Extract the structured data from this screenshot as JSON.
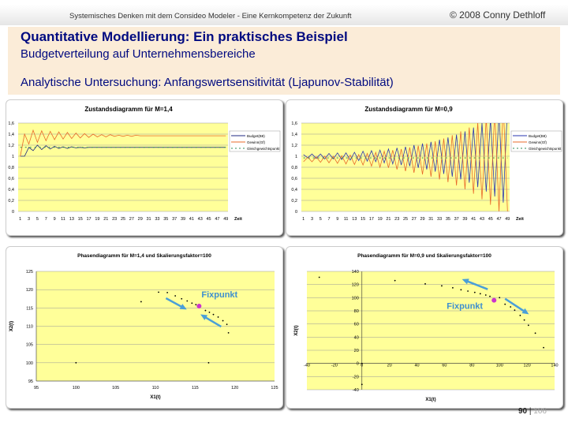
{
  "header": {
    "left": "Systemisches Denken mit dem Consideo Modeler - Eine Kernkompetenz der Zukunft",
    "right": "© 2008 Conny Dethloff"
  },
  "title": "Quantitative Modellierung: Ein praktisches Beispiel",
  "subtitle": "Budgetverteilung auf Unternehmensbereiche",
  "section": "Analytische Untersuchung: Anfangswertsensitivität (Ljapunov-Stabilität)",
  "page": {
    "current": "90",
    "total": "106",
    "sep": "|"
  },
  "colors": {
    "plot_bg": "#ffff99",
    "budget": "#1f2a80",
    "gewinn": "#e8692a",
    "gleich": "#2e8b57",
    "fix": "#cc33cc",
    "arrow": "#4a9fd8",
    "annot": "#3e8fcf"
  },
  "chart_data": [
    {
      "type": "line",
      "title": "Zustandsdiagramm für M=1,4",
      "xlabel": "Zeit",
      "ylim": [
        0,
        1.6
      ],
      "yticks": [
        "0",
        "0,2",
        "0,4",
        "0,6",
        "0,8",
        "1",
        "1,2",
        "1,4",
        "1,6"
      ],
      "xticks": [
        1,
        3,
        5,
        7,
        9,
        11,
        13,
        15,
        17,
        19,
        21,
        23,
        25,
        27,
        29,
        31,
        33,
        35,
        37,
        39,
        41,
        43,
        45,
        47,
        49
      ],
      "legend": "right",
      "series": [
        {
          "name": "Budget(B8)",
          "style": "solid",
          "color": "#1f2a80",
          "values": [
            1.0,
            1.0,
            1.16,
            1.1,
            1.2,
            1.12,
            1.19,
            1.13,
            1.18,
            1.14,
            1.17,
            1.14,
            1.17,
            1.15,
            1.16,
            1.15,
            1.16,
            1.16,
            1.16,
            1.16,
            1.16,
            1.16,
            1.16,
            1.16,
            1.16,
            1.16,
            1.16,
            1.16,
            1.16,
            1.16,
            1.16,
            1.16,
            1.16,
            1.16,
            1.16,
            1.16,
            1.16,
            1.16,
            1.16,
            1.16,
            1.16,
            1.16,
            1.16,
            1.16,
            1.16,
            1.16,
            1.16,
            1.16,
            1.16
          ]
        },
        {
          "name": "Gewinn(Gf)",
          "style": "solid",
          "color": "#e8692a",
          "values": [
            1.0,
            1.4,
            1.22,
            1.47,
            1.25,
            1.46,
            1.28,
            1.45,
            1.3,
            1.44,
            1.31,
            1.43,
            1.32,
            1.42,
            1.33,
            1.41,
            1.34,
            1.4,
            1.35,
            1.39,
            1.35,
            1.39,
            1.36,
            1.38,
            1.36,
            1.38,
            1.36,
            1.38,
            1.37,
            1.37,
            1.37,
            1.37,
            1.37,
            1.37,
            1.37,
            1.37,
            1.37,
            1.37,
            1.37,
            1.37,
            1.37,
            1.37,
            1.37,
            1.37,
            1.37,
            1.37,
            1.37,
            1.37,
            1.37
          ]
        },
        {
          "name": "Gleichgewichtspunkt",
          "style": "dashed",
          "color": "#2e8b57",
          "values": [
            1.16,
            1.16,
            1.16,
            1.16,
            1.16,
            1.16,
            1.16,
            1.16,
            1.16,
            1.16,
            1.16,
            1.16,
            1.16,
            1.16,
            1.16,
            1.16,
            1.16,
            1.16,
            1.16,
            1.16,
            1.16,
            1.16,
            1.16,
            1.16,
            1.16,
            1.16,
            1.16,
            1.16,
            1.16,
            1.16,
            1.16,
            1.16,
            1.16,
            1.16,
            1.16,
            1.16,
            1.16,
            1.16,
            1.16,
            1.16,
            1.16,
            1.16,
            1.16,
            1.16,
            1.16,
            1.16,
            1.16,
            1.16,
            1.16
          ]
        }
      ]
    },
    {
      "type": "line",
      "title": "Zustandsdiagramm für M=0,9",
      "xlabel": "Zeit",
      "ylim": [
        0,
        1.6
      ],
      "yticks": [
        "0",
        "0,2",
        "0,4",
        "0,6",
        "0,8",
        "1",
        "1,2",
        "1,4",
        "1,6"
      ],
      "xticks": [
        1,
        3,
        5,
        7,
        9,
        11,
        13,
        15,
        17,
        19,
        21,
        23,
        25,
        27,
        29,
        31,
        33,
        35,
        37,
        39,
        41,
        43,
        45,
        47,
        49
      ],
      "legend": "right",
      "series": [
        {
          "name": "Budget(B8)",
          "style": "solid",
          "color": "#2a36b0",
          "values": [
            1.03,
            0.97,
            1.04,
            0.96,
            1.04,
            0.95,
            1.05,
            0.95,
            1.06,
            0.94,
            1.06,
            0.93,
            1.07,
            0.92,
            1.09,
            0.91,
            1.1,
            0.9,
            1.11,
            0.88,
            1.13,
            0.86,
            1.15,
            0.84,
            1.17,
            0.82,
            1.2,
            0.79,
            1.23,
            0.76,
            1.26,
            0.72,
            1.3,
            0.68,
            1.34,
            0.63,
            1.39,
            0.58,
            1.45,
            0.52,
            1.52,
            0.44,
            1.6,
            0.36,
            1.68,
            0.27,
            1.79,
            0.16,
            1.9
          ]
        },
        {
          "name": "Gewinn(Gf)",
          "style": "solid",
          "color": "#e8692a",
          "values": [
            0.9,
            0.98,
            0.9,
            0.99,
            0.89,
            1.0,
            0.88,
            1.0,
            0.87,
            1.01,
            0.86,
            1.02,
            0.85,
            1.03,
            0.84,
            1.05,
            0.82,
            1.07,
            0.8,
            1.09,
            0.79,
            1.11,
            0.76,
            1.13,
            0.73,
            1.16,
            0.7,
            1.19,
            0.67,
            1.23,
            0.63,
            1.27,
            0.58,
            1.32,
            0.53,
            1.38,
            0.47,
            1.45,
            0.4,
            1.52,
            0.32,
            1.61,
            0.22,
            1.71,
            0.12,
            1.82,
            0.0,
            1.95,
            0.0
          ]
        },
        {
          "name": "Gleichgewichtspunkt",
          "style": "dashed",
          "color": "#2e8b57",
          "values": [
            0.97,
            0.97,
            0.97,
            0.97,
            0.97,
            0.97,
            0.97,
            0.97,
            0.97,
            0.97,
            0.97,
            0.97,
            0.97,
            0.97,
            0.97,
            0.97,
            0.97,
            0.97,
            0.97,
            0.97,
            0.97,
            0.97,
            0.97,
            0.97,
            0.97,
            0.97,
            0.97,
            0.97,
            0.97,
            0.97,
            0.97,
            0.97,
            0.97,
            0.97,
            0.97,
            0.97,
            0.97,
            0.97,
            0.97,
            0.97,
            0.97,
            0.97,
            0.97,
            0.97,
            0.97,
            0.97,
            0.97,
            0.97,
            0.97
          ]
        }
      ]
    },
    {
      "type": "scatter",
      "title": "Phasendiagramm für M=1,4 und Skalierungsfaktor=100",
      "xlabel": "X1(t)",
      "ylabel": "X2(t)",
      "xlim": [
        95,
        125
      ],
      "ylim": [
        95,
        125
      ],
      "xticks": [
        "95",
        "100",
        "105",
        "110",
        "115",
        "120",
        "125"
      ],
      "yticks": [
        "95",
        "100",
        "105",
        "110",
        "115",
        "120",
        "125"
      ],
      "points": [
        [
          100,
          100
        ],
        [
          116.7,
          100
        ],
        [
          108.2,
          116.7
        ],
        [
          110.4,
          119.3
        ],
        [
          119.2,
          108.2
        ],
        [
          111.5,
          119.2
        ],
        [
          119,
          110.5
        ],
        [
          112.5,
          118.3
        ],
        [
          118.5,
          111.5
        ],
        [
          113.3,
          117.5
        ],
        [
          117.9,
          112.5
        ],
        [
          114,
          116.9
        ],
        [
          117.3,
          113.2
        ],
        [
          114.6,
          116.3
        ],
        [
          116.8,
          113.8
        ],
        [
          115.1,
          115.9
        ],
        [
          116.3,
          114.3
        ]
      ],
      "fixpoint": [
        115.5,
        115.5
      ],
      "annotation": "Fixpunkt"
    },
    {
      "type": "scatter",
      "title": "Phasendiagramm für M=0,9 und Skalierungsfaktor=100",
      "xlabel": "X1(t)",
      "ylabel": "X2(t)",
      "xlim": [
        -40,
        140
      ],
      "ylim": [
        -40,
        140
      ],
      "xticks": [
        "-40",
        "-20",
        "0",
        "20",
        "40",
        "60",
        "80",
        "100",
        "120",
        "140"
      ],
      "yticks": [
        "-40",
        "-20",
        "0",
        "20",
        "40",
        "60",
        "80",
        "100",
        "120",
        "140"
      ],
      "points": [
        [
          0,
          -32
        ],
        [
          0,
          0
        ],
        [
          -31,
          131
        ],
        [
          24,
          126
        ],
        [
          46,
          121
        ],
        [
          58,
          118
        ],
        [
          66,
          115
        ],
        [
          72,
          112
        ],
        [
          77,
          110
        ],
        [
          82,
          108
        ],
        [
          86,
          106
        ],
        [
          90,
          104
        ],
        [
          93,
          102
        ],
        [
          100,
          100
        ],
        [
          104,
          90
        ],
        [
          108,
          86
        ],
        [
          111,
          81
        ],
        [
          115,
          73
        ],
        [
          118,
          66
        ],
        [
          121,
          58
        ],
        [
          126,
          46
        ],
        [
          132,
          24
        ]
      ],
      "fixpoint": [
        96,
        96
      ],
      "annotation": "Fixpunkt"
    }
  ]
}
